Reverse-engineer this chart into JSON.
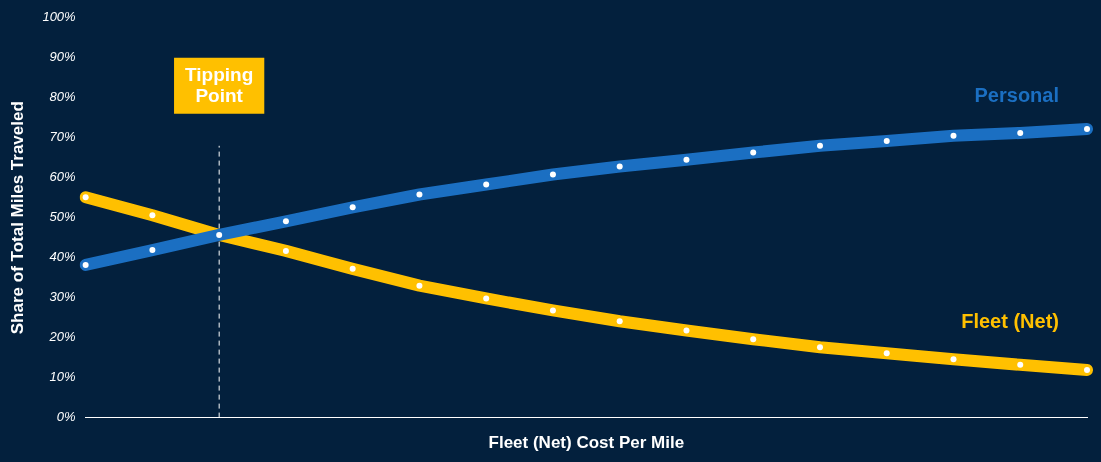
{
  "chart_data": {
    "type": "line",
    "xlabel": "Fleet (Net) Cost Per Mile",
    "ylabel": "Share of Total Miles Traveled",
    "categories": [
      null,
      null,
      null,
      null,
      null,
      null,
      null,
      null,
      null,
      null,
      null,
      null,
      null,
      null,
      null,
      null
    ],
    "series": [
      {
        "name": "Personal",
        "color": "#1b6fc2",
        "values": [
          38.2,
          41.9,
          45.7,
          49.1,
          52.6,
          55.8,
          58.3,
          60.8,
          62.8,
          64.5,
          66.3,
          68,
          69.2,
          70.5,
          71.2,
          72.2
        ]
      },
      {
        "name": "Fleet (Net)",
        "color": "#ffc000",
        "values": [
          55.1,
          50.6,
          45.7,
          41.7,
          37.2,
          33,
          29.8,
          26.8,
          24.1,
          21.8,
          19.6,
          17.6,
          16.1,
          14.6,
          13.2,
          11.9
        ]
      }
    ],
    "ylim": [
      0,
      100
    ],
    "yticks": [
      {
        "value": 0,
        "label": "0%"
      },
      {
        "value": 10,
        "label": "10%"
      },
      {
        "value": 20,
        "label": "20%"
      },
      {
        "value": 30,
        "label": "30%"
      },
      {
        "value": 40,
        "label": "40%"
      },
      {
        "value": 50,
        "label": "50%"
      },
      {
        "value": 60,
        "label": "60%"
      },
      {
        "value": 70,
        "label": "70%"
      },
      {
        "value": 80,
        "label": "80%"
      },
      {
        "value": 90,
        "label": "90%"
      },
      {
        "value": 100,
        "label": "100%"
      }
    ],
    "annotations": [
      "Tipping Point"
    ],
    "tick_labels": "y",
    "grid": false,
    "legend": false,
    "marker": "circle",
    "line_style": "solid"
  }
}
